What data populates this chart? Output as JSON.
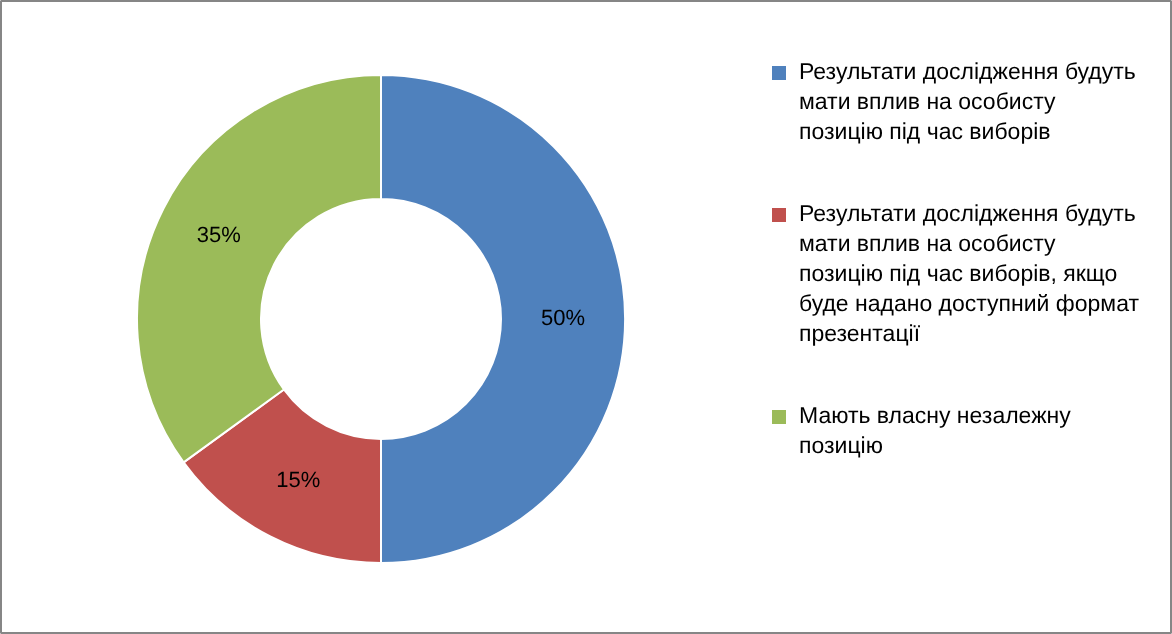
{
  "chart_data": {
    "type": "donut",
    "categories": [
      "Результати дослідження будуть мати вплив на особисту позицію під час виборів",
      "Результати дослідження будуть мати вплив на особисту позицію під час виборів, якщо буде надано доступний формат презентації",
      "Мають власну незалежну позицію"
    ],
    "values": [
      50,
      15,
      35
    ],
    "colors": [
      "#4f81bd",
      "#c0504d",
      "#9bbb59"
    ],
    "value_labels": [
      "50%",
      "15%",
      "35%"
    ],
    "legend": "right"
  }
}
